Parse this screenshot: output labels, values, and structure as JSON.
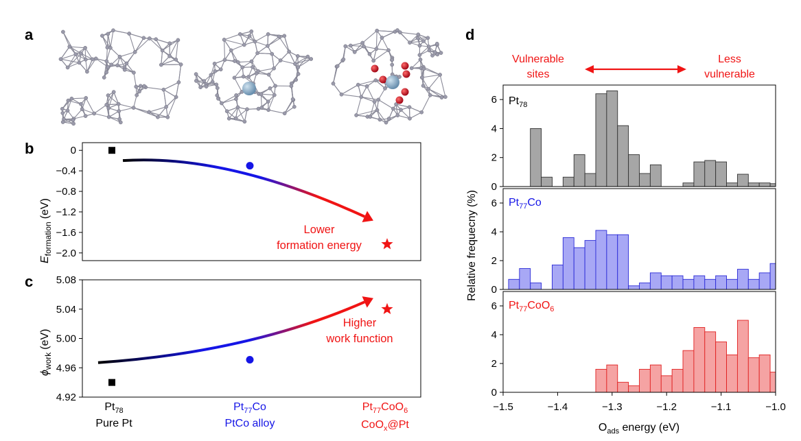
{
  "panel_labels": {
    "a": "a",
    "b": "b",
    "c": "c",
    "d": "d"
  },
  "colors": {
    "pt78": "#000000",
    "pt77co": "#1515e6",
    "pt77coo6": "#f01414",
    "bar_gray_fill": "#a6a6a6",
    "bar_blue_fill": "#a8a8f5",
    "bar_red_fill": "#f5a3a3",
    "cluster_edge": "#8a8a98",
    "co_atom": "#7fa6c4",
    "o_atom": "#c0101c"
  },
  "panel_a": {
    "icon_names": [
      "pt78-cluster-model",
      "pt77co-cluster-model",
      "pt77coo6-cluster-model"
    ]
  },
  "x_categories": [
    {
      "formula_main": "Pt",
      "formula_sub": "78",
      "formula_tail": "",
      "formula_sub2": "",
      "desc": "Pure Pt",
      "color": "#000000"
    },
    {
      "formula_main": "Pt",
      "formula_sub": "77",
      "formula_tail": "Co",
      "formula_sub2": "",
      "desc": "PtCo alloy",
      "color": "#1515e6"
    },
    {
      "formula_main": "Pt",
      "formula_sub": "77",
      "formula_tail": "CoO",
      "formula_sub2": "6",
      "desc_main": "CoO",
      "desc_sub": "x",
      "desc_tail": "@Pt",
      "color": "#f01414"
    }
  ],
  "chart_data": [
    {
      "id": "b",
      "type": "scatter",
      "ylabel_main": "E",
      "ylabel_sub": "formation",
      "ylabel_unit": "(eV)",
      "ylim": [
        -2.15,
        0.15
      ],
      "yticks": [
        0,
        -0.4,
        -0.8,
        -1.2,
        -1.6,
        -2.0
      ],
      "ytick_labels": [
        "0",
        "−0.4",
        "−0.8",
        "−1.2",
        "−1.6",
        "−2.0"
      ],
      "categories": [
        "Pt78",
        "Pt77Co",
        "Pt77CoO6"
      ],
      "values": [
        0,
        -0.3,
        -1.83
      ],
      "markers": [
        "square",
        "circle",
        "star"
      ],
      "trend": {
        "from": [
          0.08,
          -0.2
        ],
        "to": [
          1.9,
          -1.37
        ]
      },
      "annotation_lines": [
        "Lower",
        "formation energy"
      ]
    },
    {
      "id": "c",
      "type": "scatter",
      "ylabel_main": "ϕ",
      "ylabel_sub": "work",
      "ylabel_unit": "(eV)",
      "ylim": [
        4.92,
        5.08
      ],
      "yticks": [
        4.92,
        4.96,
        5.0,
        5.04,
        5.08
      ],
      "ytick_labels": [
        "4.92",
        "4.96",
        "5.00",
        "5.04",
        "5.08"
      ],
      "categories": [
        "Pt78",
        "Pt77Co",
        "Pt77CoO6"
      ],
      "values": [
        4.94,
        4.971,
        5.04
      ],
      "markers": [
        "square",
        "circle",
        "star"
      ],
      "trend": {
        "from": [
          -0.1,
          4.967
        ],
        "to": [
          1.9,
          5.055
        ]
      },
      "annotation_lines": [
        "Higher",
        "work function"
      ]
    },
    {
      "id": "d",
      "type": "bar",
      "title_left": "Vulnerable sites",
      "title_left_lines": [
        "Vulnerable",
        "sites"
      ],
      "title_right_lines": [
        "Less",
        "vulnerable"
      ],
      "xlabel_main": "O",
      "xlabel_sub": "ads",
      "xlabel_tail": " energy (eV)",
      "ylabel": "Relative frequecny (%)",
      "xlim": [
        -1.5,
        -1.0
      ],
      "xticks": [
        -1.5,
        -1.4,
        -1.3,
        -1.2,
        -1.1,
        -1.0
      ],
      "xtick_labels": [
        "−1.5",
        "−1.4",
        "−1.3",
        "−1.2",
        "−1.1",
        "−1.0"
      ],
      "ylim": [
        0,
        7
      ],
      "yticks": [
        0,
        2,
        4,
        6
      ],
      "ytick_labels": [
        "0",
        "2",
        "4",
        "6"
      ],
      "bin_width": 0.02,
      "series": [
        {
          "name": "Pt78",
          "label_main": "Pt",
          "label_sub": "78",
          "label_tail": "",
          "label_sub2": "",
          "x": [
            -1.44,
            -1.42,
            -1.38,
            -1.36,
            -1.34,
            -1.32,
            -1.3,
            -1.28,
            -1.26,
            -1.24,
            -1.22,
            -1.2,
            -1.18,
            -1.16,
            -1.14,
            -1.12,
            -1.1,
            -1.08,
            -1.06,
            -1.04,
            -1.02,
            -1.0
          ],
          "values": [
            4.0,
            0.65,
            0.65,
            2.2,
            0.9,
            6.4,
            6.6,
            4.2,
            2.2,
            0.9,
            1.5,
            0,
            0,
            0.25,
            1.7,
            1.8,
            1.7,
            0.25,
            0.85,
            0.25,
            0.25,
            0.2
          ]
        },
        {
          "name": "Pt77Co",
          "label_main": "Pt",
          "label_sub": "77",
          "label_tail": "Co",
          "label_sub2": "",
          "x": [
            -1.48,
            -1.46,
            -1.44,
            -1.42,
            -1.4,
            -1.38,
            -1.36,
            -1.34,
            -1.32,
            -1.3,
            -1.28,
            -1.26,
            -1.24,
            -1.22,
            -1.2,
            -1.18,
            -1.16,
            -1.14,
            -1.12,
            -1.1,
            -1.08,
            -1.06,
            -1.04,
            -1.02,
            -1.0
          ],
          "values": [
            0.7,
            1.45,
            0.45,
            0,
            1.7,
            3.6,
            2.9,
            3.4,
            4.1,
            3.8,
            3.8,
            0.25,
            0.45,
            1.15,
            0.95,
            0.95,
            0.7,
            0.95,
            0.7,
            0.95,
            0.7,
            1.4,
            0.7,
            1.15,
            1.8
          ]
        },
        {
          "name": "Pt77CoO6",
          "label_main": "Pt",
          "label_sub": "77",
          "label_tail": "CoO",
          "label_sub2": "6",
          "x": [
            -1.32,
            -1.3,
            -1.28,
            -1.26,
            -1.24,
            -1.22,
            -1.2,
            -1.18,
            -1.16,
            -1.14,
            -1.12,
            -1.1,
            -1.08,
            -1.06,
            -1.04,
            -1.02,
            -1.0
          ],
          "values": [
            1.6,
            1.9,
            0.7,
            0.45,
            1.6,
            1.9,
            1.15,
            1.6,
            2.9,
            4.5,
            4.2,
            3.5,
            2.6,
            5.0,
            2.4,
            2.6,
            1.4
          ]
        }
      ]
    }
  ]
}
